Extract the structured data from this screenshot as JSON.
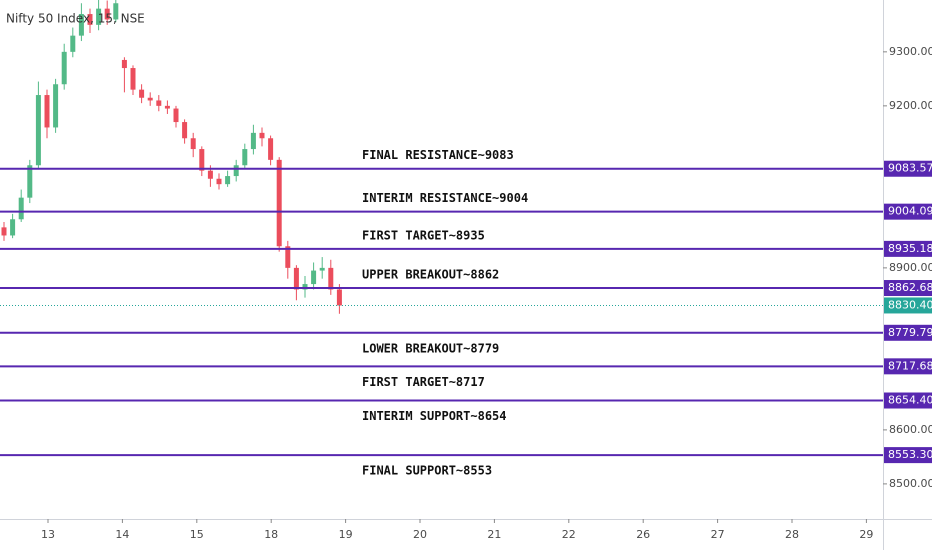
{
  "chart_data": {
    "type": "candlestick",
    "title": "Nifty 50 Index, 15, NSE",
    "categories": [
      "13",
      "14",
      "15",
      "18",
      "19",
      "20",
      "21",
      "22",
      "26",
      "27",
      "28",
      "29"
    ],
    "open": [
      8975,
      8960,
      8990,
      9030,
      9090,
      9220,
      9160,
      9240,
      9300,
      9330,
      9370,
      9350,
      9380,
      9360,
      9285,
      9270,
      9230,
      9215,
      9210,
      9200,
      9195,
      9170,
      9140,
      9120,
      9080,
      9065,
      9055,
      9070,
      9090,
      9120,
      9150,
      9140,
      9100,
      8940,
      8900,
      8860,
      8870,
      8895,
      8900,
      8860
    ],
    "high": [
      8985,
      9000,
      9045,
      9100,
      9245,
      9230,
      9250,
      9315,
      9345,
      9390,
      9380,
      9400,
      9395,
      9410,
      9290,
      9275,
      9240,
      9225,
      9220,
      9210,
      9200,
      9175,
      9150,
      9125,
      9090,
      9075,
      9080,
      9100,
      9130,
      9165,
      9160,
      9145,
      9105,
      8950,
      8905,
      8885,
      8910,
      8920,
      8915,
      8870
    ],
    "low": [
      8950,
      8955,
      8985,
      9020,
      9085,
      9140,
      9150,
      9230,
      9290,
      9320,
      9335,
      9340,
      9350,
      9355,
      9225,
      9220,
      9205,
      9200,
      9190,
      9185,
      9160,
      9130,
      9105,
      9070,
      9050,
      9045,
      9050,
      9060,
      9085,
      9110,
      9125,
      9090,
      8930,
      8880,
      8840,
      8845,
      8860,
      8880,
      8850,
      8815
    ],
    "close": [
      8960,
      8990,
      9030,
      9090,
      9220,
      9160,
      9240,
      9300,
      9330,
      9370,
      9350,
      9380,
      9360,
      9390,
      9270,
      9230,
      9215,
      9210,
      9200,
      9195,
      9170,
      9140,
      9120,
      9080,
      9065,
      9055,
      9070,
      9090,
      9120,
      9150,
      9140,
      9100,
      8940,
      8900,
      8860,
      8870,
      8895,
      8900,
      8860,
      8830.4
    ],
    "up_color": "#53b987",
    "down_color": "#eb4d5c",
    "ylim": [
      8435,
      9396
    ],
    "yticks": [
      {
        "value": 8500,
        "label": "8500.00"
      },
      {
        "value": 8600,
        "label": "8600.00"
      },
      {
        "value": 8900,
        "label": "8900.00"
      },
      {
        "value": 9200,
        "label": "9200.00"
      },
      {
        "value": 9300,
        "label": "9300.00"
      }
    ],
    "level_color": "#5727b0",
    "levels": [
      {
        "value": 9083.57,
        "annotation": "FINAL RESISTANCE~9083"
      },
      {
        "value": 9004.09,
        "annotation": "INTERIM RESISTANCE~9004"
      },
      {
        "value": 8935.18,
        "annotation": "FIRST TARGET~8935"
      },
      {
        "value": 8862.68,
        "annotation": "UPPER BREAKOUT~8862"
      },
      {
        "value": 8779.79,
        "annotation": "LOWER BREAKOUT~8779"
      },
      {
        "value": 8717.68,
        "annotation": "FIRST TARGET~8717"
      },
      {
        "value": 8654.4,
        "label": "8654.40",
        "annotation": "INTERIM SUPPORT~8654"
      },
      {
        "value": 8553.3,
        "label": "8553.30",
        "annotation": "FINAL SUPPORT~8553"
      }
    ],
    "current_price": {
      "value": 8830.4,
      "label": "8830.40",
      "color": "#26a69a"
    }
  }
}
